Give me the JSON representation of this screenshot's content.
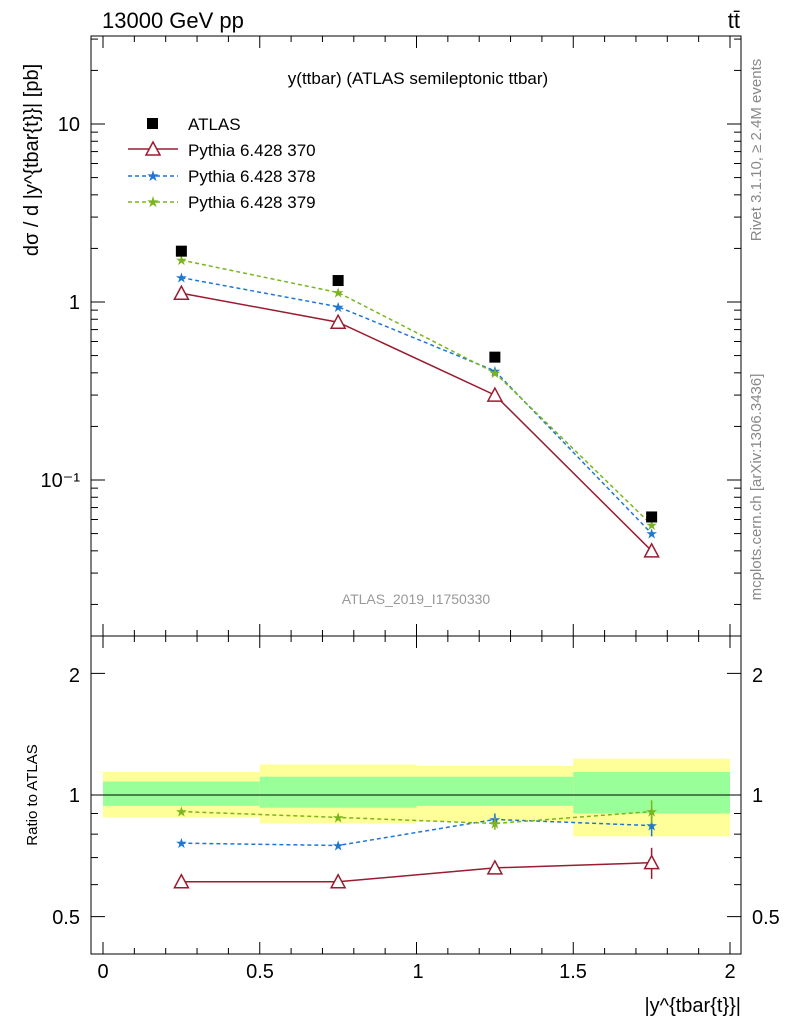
{
  "header": {
    "energy_label": "13000 GeV pp",
    "process_label": "tt̄"
  },
  "side_labels": {
    "rivet": "Rivet 3.1.10, ≥ 2.4M events",
    "mcplots": "mcplots.cern.ch [arXiv:1306.3436]"
  },
  "main_plot": {
    "title": "y(ttbar) (ATLAS semileptonic ttbar)",
    "ylabel": "dσ / d |y^{tbar{t}}| [pb]",
    "watermark": "ATLAS_2019_I1750330",
    "y_ticks": [
      "10",
      "1",
      "10⁻¹"
    ]
  },
  "ratio_plot": {
    "ylabel": "Ratio to ATLAS",
    "xlabel": "|y^{tbar{t}}|",
    "y_ticks": [
      "2",
      "1",
      "0.5"
    ],
    "x_ticks": [
      "0",
      "0.5",
      "1",
      "1.5",
      "2"
    ]
  },
  "legend": [
    "ATLAS",
    "Pythia 6.428 370",
    "Pythia 6.428 378",
    "Pythia 6.428 379"
  ],
  "colors": {
    "data": "#000000",
    "p370": "#9b1b30",
    "p378": "#1f77d4",
    "p379": "#7ab51d",
    "band_inner": "#99ff99",
    "band_outer": "#ffff99"
  },
  "chart_data": [
    {
      "type": "scatter",
      "title": "y(ttbar) (ATLAS semileptonic ttbar)",
      "ylabel": "dσ / d |y^{tbar{t}}| [pb]",
      "yscale": "log",
      "xlim": [
        -0.05,
        2.05
      ],
      "ylim": [
        0.017,
        33
      ],
      "x": [
        0.25,
        0.75,
        1.25,
        1.75
      ],
      "series": [
        {
          "name": "ATLAS",
          "values": [
            1.93,
            1.32,
            0.49,
            0.062
          ]
        },
        {
          "name": "Pythia 6.428 370",
          "values": [
            1.12,
            0.77,
            0.3,
            0.04
          ]
        },
        {
          "name": "Pythia 6.428 378",
          "values": [
            1.37,
            0.94,
            0.41,
            0.05
          ]
        },
        {
          "name": "Pythia 6.428 379",
          "values": [
            1.72,
            1.13,
            0.4,
            0.056
          ]
        }
      ],
      "legend_position": "top-left"
    },
    {
      "type": "line",
      "ylabel": "Ratio to ATLAS",
      "xlabel": "|y^{tbar{t}}|",
      "yscale": "log",
      "xlim": [
        -0.05,
        2.05
      ],
      "ylim": [
        0.41,
        2.5
      ],
      "bins": [
        [
          0,
          0.5
        ],
        [
          0.5,
          1
        ],
        [
          1,
          1.5
        ],
        [
          1.5,
          2
        ]
      ],
      "x": [
        0.25,
        0.75,
        1.25,
        1.75
      ],
      "uncertainty_inner": [
        [
          0.94,
          1.08
        ],
        [
          0.93,
          1.11
        ],
        [
          0.94,
          1.11
        ],
        [
          0.9,
          1.14
        ]
      ],
      "uncertainty_outer": [
        [
          0.88,
          1.14
        ],
        [
          0.85,
          1.19
        ],
        [
          0.86,
          1.18
        ],
        [
          0.79,
          1.23
        ]
      ],
      "series": [
        {
          "name": "Pythia 6.428 370",
          "values": [
            0.61,
            0.61,
            0.66,
            0.68
          ],
          "errors": [
            0.0,
            0.0,
            0.01,
            0.06
          ]
        },
        {
          "name": "Pythia 6.428 378",
          "values": [
            0.76,
            0.75,
            0.87,
            0.84
          ],
          "errors": [
            0.0,
            0.01,
            0.03,
            0.05
          ]
        },
        {
          "name": "Pythia 6.428 379",
          "values": [
            0.91,
            0.88,
            0.85,
            0.91
          ],
          "errors": [
            0.0,
            0.01,
            0.03,
            0.06
          ]
        }
      ]
    }
  ]
}
